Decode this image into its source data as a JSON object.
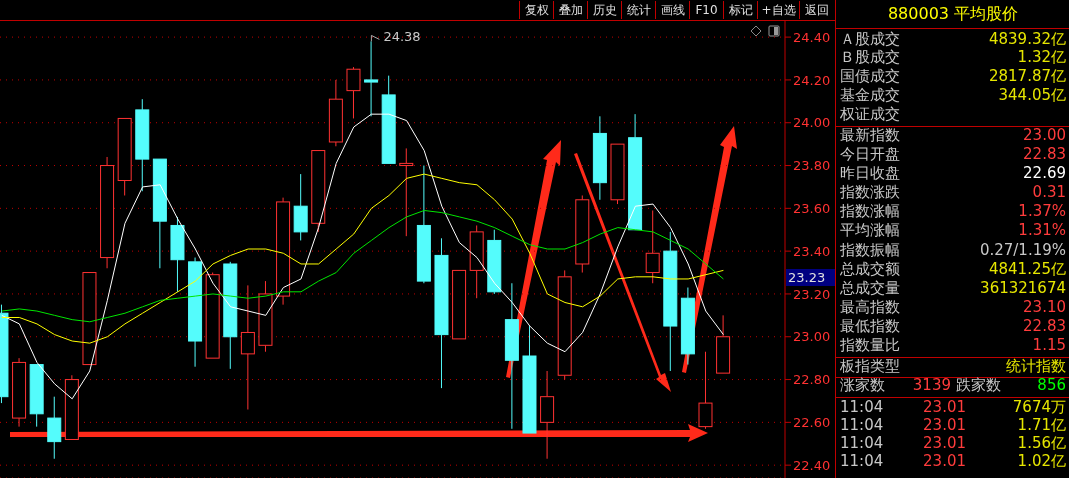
{
  "chart_data": [
    {
      "type": "candlestick",
      "categories": [
        null,
        null,
        null,
        null,
        null,
        null,
        null,
        null,
        null,
        null,
        null,
        null,
        null,
        null,
        null,
        null,
        null,
        null,
        null,
        null,
        null,
        null,
        null,
        null,
        null,
        null,
        null,
        null,
        null,
        null,
        null,
        null,
        null,
        null,
        null,
        null,
        null,
        null,
        null,
        null,
        null,
        null
      ],
      "ohlc": [
        [
          23.11,
          23.15,
          22.69,
          22.72
        ],
        [
          22.62,
          22.9,
          22.58,
          22.88
        ],
        [
          22.87,
          22.87,
          22.58,
          22.64
        ],
        [
          22.62,
          22.72,
          22.43,
          22.51
        ],
        [
          22.52,
          22.82,
          22.52,
          22.8
        ],
        [
          22.87,
          23.3,
          22.87,
          23.3
        ],
        [
          23.37,
          23.84,
          23.32,
          23.8
        ],
        [
          23.73,
          24.02,
          23.66,
          24.02
        ],
        [
          24.06,
          24.11,
          23.68,
          23.83
        ],
        [
          23.83,
          23.83,
          23.32,
          23.54
        ],
        [
          23.52,
          23.56,
          23.21,
          23.36
        ],
        [
          23.35,
          23.37,
          22.86,
          22.98
        ],
        [
          22.9,
          23.3,
          22.9,
          23.29
        ],
        [
          23.34,
          23.35,
          22.85,
          23.0
        ],
        [
          22.92,
          23.24,
          22.66,
          23.02
        ],
        [
          22.96,
          23.26,
          22.93,
          23.2
        ],
        [
          23.19,
          23.65,
          23.15,
          23.63
        ],
        [
          23.61,
          23.76,
          23.45,
          23.49
        ],
        [
          23.53,
          23.87,
          23.49,
          23.87
        ],
        [
          23.91,
          24.2,
          23.89,
          24.11
        ],
        [
          24.15,
          24.26,
          24.02,
          24.25
        ],
        [
          24.2,
          24.38,
          24.03,
          24.19
        ],
        [
          24.13,
          24.22,
          23.81,
          23.81
        ],
        [
          23.8,
          23.88,
          23.47,
          23.81
        ],
        [
          23.52,
          23.8,
          23.25,
          23.26
        ],
        [
          23.38,
          23.46,
          22.76,
          23.01
        ],
        [
          22.99,
          23.31,
          22.99,
          23.31
        ],
        [
          23.31,
          23.52,
          23.18,
          23.49
        ],
        [
          23.45,
          23.5,
          23.2,
          23.21
        ],
        [
          23.08,
          23.25,
          22.57,
          22.89
        ],
        [
          22.91,
          23.05,
          22.55,
          22.55
        ],
        [
          22.6,
          22.84,
          22.43,
          22.72
        ],
        [
          22.82,
          23.31,
          22.8,
          23.28
        ],
        [
          23.34,
          23.66,
          23.3,
          23.64
        ],
        [
          23.95,
          24.03,
          23.64,
          23.72
        ],
        [
          23.64,
          23.9,
          23.62,
          23.9
        ],
        [
          23.93,
          24.04,
          23.5,
          23.5
        ],
        [
          23.3,
          23.59,
          23.25,
          23.39
        ],
        [
          23.4,
          23.49,
          22.84,
          23.05
        ],
        [
          23.18,
          23.23,
          22.87,
          22.92
        ],
        [
          22.58,
          22.93,
          22.57,
          22.69
        ],
        [
          22.83,
          23.1,
          22.83,
          23.0
        ]
      ],
      "colors": [
        "#54fcfc",
        "#ff3232",
        "#54fcfc",
        "#54fcfc",
        "#ff3232",
        "#ff3232",
        "#ff3232",
        "#ff3232",
        "#54fcfc",
        "#54fcfc",
        "#54fcfc",
        "#54fcfc",
        "#ff3232",
        "#54fcfc",
        "#ff3232",
        "#ff3232",
        "#ff3232",
        "#54fcfc",
        "#ff3232",
        "#ff3232",
        "#ff3232",
        "#54fcfc",
        "#54fcfc",
        "#ff3232",
        "#54fcfc",
        "#54fcfc",
        "#ff3232",
        "#ff3232",
        "#54fcfc",
        "#54fcfc",
        "#54fcfc",
        "#ff3232",
        "#ff3232",
        "#ff3232",
        "#54fcfc",
        "#ff3232",
        "#54fcfc",
        "#ff3232",
        "#54fcfc",
        "#54fcfc",
        "#ff3232",
        "#ff3232"
      ],
      "series": [
        {
          "type": "line",
          "color": "#ffffff",
          "values": [
            23.1,
            23.06,
            22.88,
            22.78,
            22.71,
            22.84,
            23.17,
            23.53,
            23.7,
            23.71,
            23.55,
            23.41,
            23.25,
            23.14,
            23.12,
            23.1,
            23.23,
            23.27,
            23.51,
            23.81,
            23.98,
            24.04,
            24.04,
            24.01,
            23.87,
            23.61,
            23.44,
            23.37,
            23.25,
            23.16,
            23.05,
            22.97,
            22.93,
            23.02,
            23.2,
            23.42,
            23.61,
            23.62,
            23.51,
            23.34,
            23.12,
            23.01
          ]
        },
        {
          "type": "line",
          "color": "#ffff00",
          "values": [
            23.09,
            23.09,
            23.06,
            23.01,
            22.98,
            22.97,
            23.0,
            23.06,
            23.11,
            23.16,
            23.21,
            23.26,
            23.34,
            23.38,
            23.41,
            23.41,
            23.39,
            23.34,
            23.34,
            23.41,
            23.48,
            23.6,
            23.66,
            23.74,
            23.76,
            23.74,
            23.72,
            23.71,
            23.64,
            23.55,
            23.39,
            23.2,
            23.16,
            23.14,
            23.19,
            23.27,
            23.28,
            23.28,
            23.27,
            23.27,
            23.29,
            23.31
          ]
        },
        {
          "type": "line",
          "color": "#00e600",
          "values": [
            23.12,
            23.13,
            23.12,
            23.1,
            23.08,
            23.07,
            23.09,
            23.11,
            23.14,
            23.17,
            23.18,
            23.19,
            23.2,
            23.19,
            23.18,
            23.19,
            23.21,
            23.21,
            23.26,
            23.3,
            23.39,
            23.45,
            23.51,
            23.56,
            23.59,
            23.58,
            23.56,
            23.54,
            23.51,
            23.47,
            23.43,
            23.41,
            23.41,
            23.44,
            23.48,
            23.51,
            23.5,
            23.49,
            23.45,
            23.41,
            23.34,
            23.27
          ]
        }
      ],
      "ylim": [
        22.34,
        24.48
      ],
      "yticks": [
        {
          "value": 22.4,
          "label": "22.40"
        },
        {
          "value": 22.6,
          "label": "22.60"
        },
        {
          "value": 22.8,
          "label": "22.80"
        },
        {
          "value": 23.0,
          "label": "23.00"
        },
        {
          "value": 23.2,
          "label": "23.20"
        },
        {
          "value": 23.4,
          "label": "23.40"
        },
        {
          "value": 23.6,
          "label": "23.60"
        },
        {
          "value": 23.8,
          "label": "23.80"
        },
        {
          "value": 24.0,
          "label": "24.00"
        },
        {
          "value": 24.2,
          "label": "24.20"
        },
        {
          "value": 24.4,
          "label": "24.40"
        }
      ],
      "grid": "y",
      "tick_labels": "y",
      "marker": "none",
      "annotations": [
        "24.38",
        "23.23"
      ]
    },
    {
      "type": "other",
      "title": "880003 平均股价",
      "annotations": [
        "复权",
        "叠加",
        "历史",
        "统计",
        "画线",
        "F10",
        "标记",
        "+自选",
        "返回",
        "Ａ股成交",
        "4839.32亿",
        "Ｂ股成交",
        "1.32亿",
        "国债成交",
        "2817.87亿",
        "基金成交",
        "344.05亿",
        "权证成交",
        "最新指数",
        "23.00",
        "今日开盘",
        "22.83",
        "昨日收盘",
        "22.69",
        "指数涨跌",
        "0.31",
        "指数涨幅",
        "1.37%",
        "平均涨幅",
        "1.31%",
        "指数振幅",
        "0.27/1.19%",
        "总成交额",
        "4841.25亿",
        "总成交量",
        "361321674",
        "最高指数",
        "23.10",
        "最低指数",
        "22.83",
        "指数量比",
        "1.15",
        "板指类型",
        "统计指数",
        "涨家数",
        "3139",
        "跌家数",
        "856",
        "11:04",
        "23.01",
        "7674万",
        "11:04",
        "23.01",
        "1.71亿",
        "11:04",
        "23.01",
        "1.56亿",
        "11:04",
        "23.01",
        "1.02亿"
      ]
    }
  ]
}
